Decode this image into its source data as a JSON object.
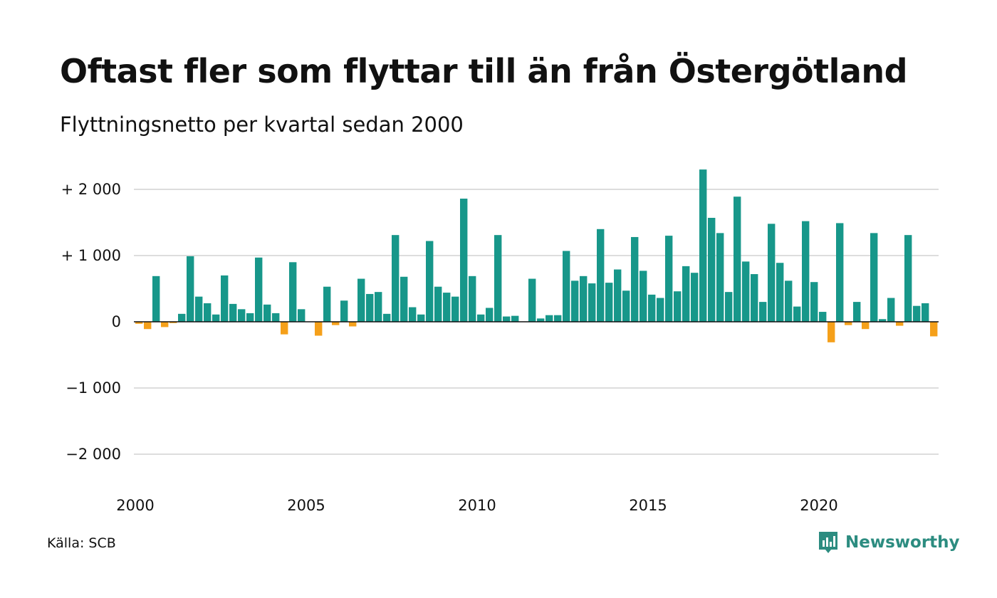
{
  "chart_data": {
    "type": "bar",
    "title": "Oftast fler som flyttar till än från Östergötland",
    "subtitle": "Flyttningsnetto per kvartal sedan 2000",
    "source": "Källa: SCB",
    "brand": "Newsworthy",
    "x_start_year": 2000,
    "periods_per_year": 4,
    "x_ticks": [
      {
        "value": 2000,
        "label": "2000"
      },
      {
        "value": 2005,
        "label": "2005"
      },
      {
        "value": 2010,
        "label": "2010"
      },
      {
        "value": 2015,
        "label": "2015"
      },
      {
        "value": 2020,
        "label": "2020"
      }
    ],
    "y_ticks": [
      {
        "value": 2000,
        "label": "+ 2 000"
      },
      {
        "value": 1000,
        "label": "+ 1 000"
      },
      {
        "value": 0,
        "label": "0"
      },
      {
        "value": -1000,
        "label": "−1 000"
      },
      {
        "value": -2000,
        "label": "−2 000"
      }
    ],
    "ylim": [
      -2300,
      2300
    ],
    "grid": true,
    "colors": {
      "positive": "#17978a",
      "negative": "#f5a01a",
      "grid": "#dddddd",
      "zero_line": "#111111"
    },
    "values": [
      -30,
      -110,
      690,
      -80,
      -20,
      120,
      990,
      380,
      280,
      110,
      700,
      270,
      190,
      130,
      970,
      260,
      130,
      -190,
      900,
      190,
      0,
      -210,
      530,
      -50,
      320,
      -70,
      650,
      420,
      450,
      120,
      1310,
      680,
      220,
      110,
      1220,
      530,
      440,
      380,
      1860,
      690,
      110,
      210,
      1310,
      80,
      90,
      0,
      650,
      50,
      100,
      100,
      1070,
      620,
      690,
      580,
      1400,
      590,
      790,
      470,
      1280,
      770,
      410,
      360,
      1300,
      460,
      840,
      740,
      2300,
      1570,
      1340,
      450,
      1890,
      910,
      720,
      300,
      1480,
      890,
      620,
      230,
      1520,
      600,
      150,
      -310,
      1490,
      -50,
      300,
      -110,
      1340,
      40,
      360,
      -60,
      1310,
      240,
      280,
      -220
    ]
  }
}
